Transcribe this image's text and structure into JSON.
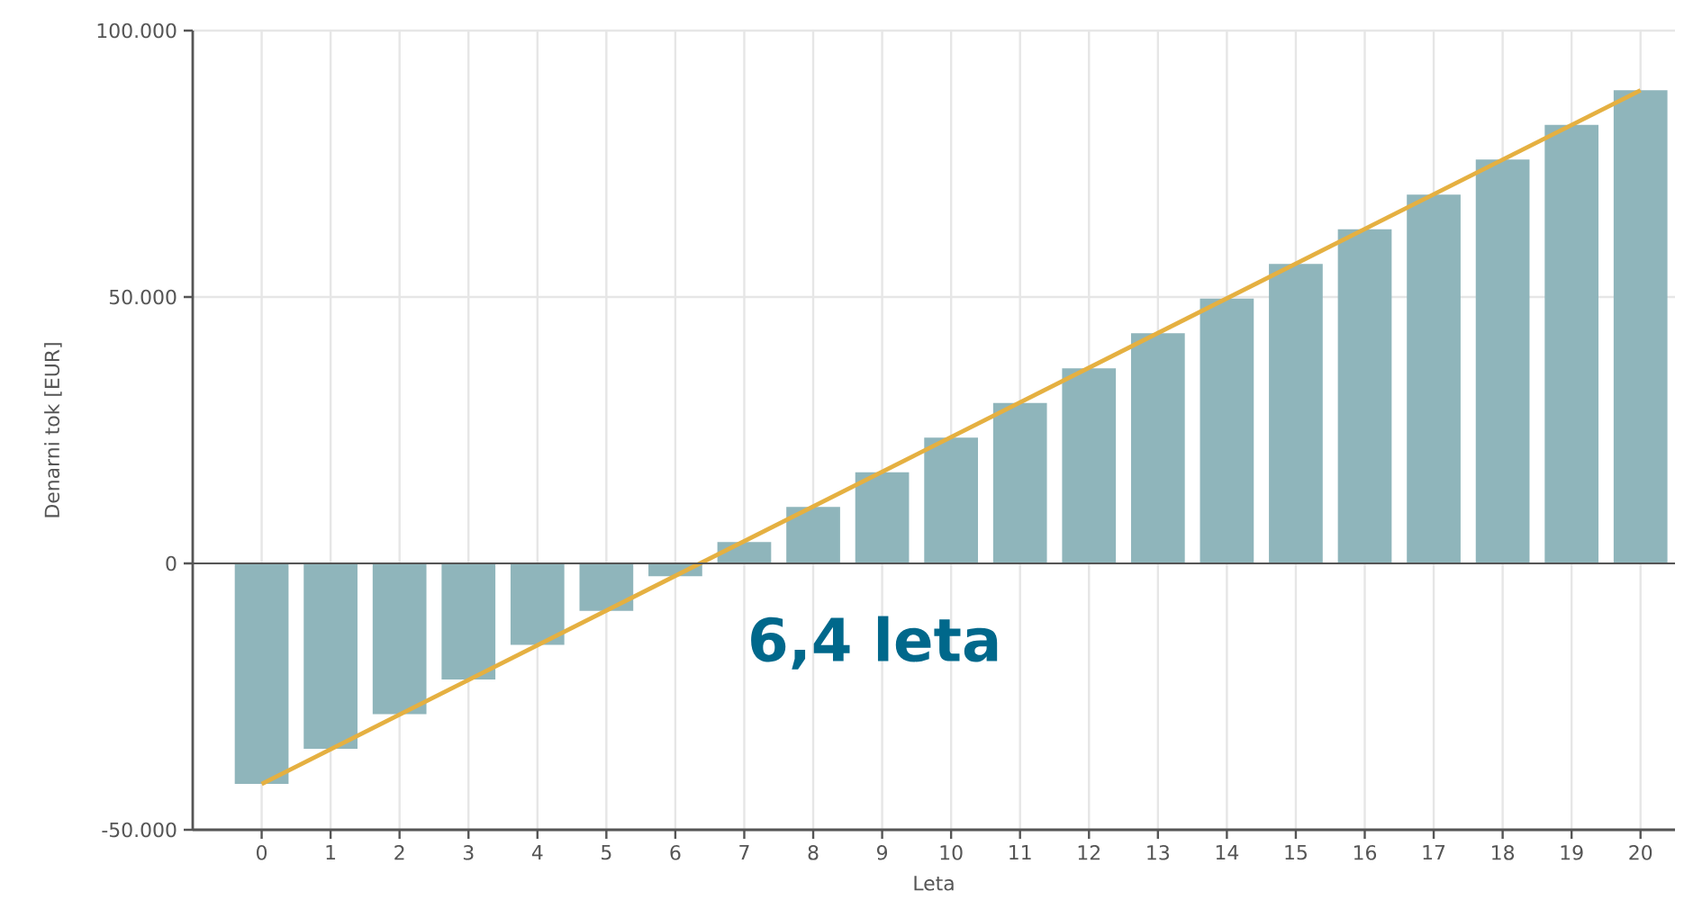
{
  "chart_data": {
    "type": "bar",
    "xlabel": "Leta",
    "ylabel": "Denarni tok [EUR]",
    "categories": [
      "0",
      "1",
      "2",
      "3",
      "4",
      "5",
      "6",
      "7",
      "8",
      "9",
      "10",
      "11",
      "12",
      "13",
      "14",
      "15",
      "16",
      "17",
      "18",
      "19",
      "20"
    ],
    "series": [
      {
        "color": "#8fb5bb",
        "values": [
          -41400,
          -34800,
          -28300,
          -21800,
          -15300,
          -8900,
          -2400,
          4000,
          10600,
          17100,
          23600,
          30100,
          36600,
          43200,
          49700,
          56200,
          62700,
          69200,
          75800,
          82300,
          88800
        ]
      },
      {
        "type": "line",
        "color": "#e5b041",
        "values": [
          -41400,
          null,
          null,
          null,
          null,
          null,
          null,
          null,
          null,
          null,
          null,
          null,
          null,
          null,
          null,
          null,
          null,
          null,
          null,
          null,
          88800
        ]
      }
    ],
    "ylim": [
      -50000,
      100000
    ],
    "yticks": [
      {
        "value": -50000,
        "label": "-50.000"
      },
      {
        "value": 0,
        "label": "0"
      },
      {
        "value": 50000,
        "label": "50.000"
      },
      {
        "value": 100000,
        "label": "100.000"
      }
    ],
    "grid": true,
    "ref_lines": [
      {
        "axis": "y",
        "value": 0,
        "color": "#555555"
      }
    ],
    "annotations": [
      "6,4 leta"
    ]
  }
}
